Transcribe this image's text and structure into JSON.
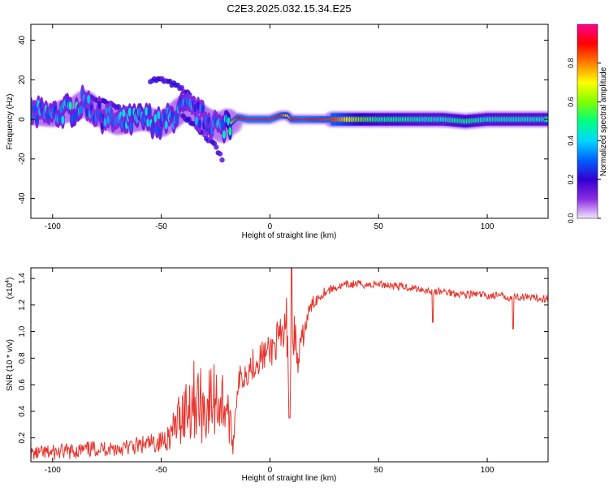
{
  "figure_title": "C2E3.2025.032.15.34.E25",
  "chart_data": [
    {
      "type": "heatmap",
      "xlabel": "Height of straight line (km)",
      "ylabel": "Frequency (Hz)",
      "xlim": [
        -110,
        128
      ],
      "ylim": [
        -50,
        48
      ],
      "xticks": [
        -100,
        -50,
        0,
        50,
        100
      ],
      "yticks": [
        -40,
        -20,
        0,
        20,
        40
      ],
      "colorbar": {
        "label": "Normalized spectral amplitude",
        "range": [
          0,
          1
        ],
        "ticks": [
          0.0,
          0.2,
          0.4,
          0.6,
          0.8
        ],
        "tick_labels": [
          "0.0",
          "0.2",
          "0.4",
          "0.6",
          "0.8"
        ],
        "colors": [
          "#f4e6ff",
          "#8a2be2",
          "#3200d0",
          "#0060ff",
          "#00d8ff",
          "#00ff80",
          "#80ff00",
          "#ffff00",
          "#ff8000",
          "#ff0000",
          "#ff0090"
        ]
      },
      "ridge": {
        "x": [
          -108,
          -100,
          -95,
          -90,
          -85,
          -80,
          -75,
          -70,
          -65,
          -60,
          -55,
          -50,
          -45,
          -40,
          -35,
          -30,
          -25,
          -22,
          -20,
          -18,
          -15,
          -10,
          -5,
          0,
          5,
          8,
          10,
          15,
          20,
          30,
          40,
          50,
          60,
          70,
          80,
          90,
          100,
          110,
          120,
          128
        ],
        "y": [
          3,
          2,
          4,
          5,
          9,
          3,
          1,
          -2,
          -1,
          0,
          0,
          -3,
          1,
          6,
          4,
          0,
          -2,
          -6,
          0,
          -2,
          1,
          0,
          0,
          0,
          2,
          2,
          0,
          0,
          0,
          0,
          0,
          0,
          0,
          0,
          0,
          -1,
          0,
          0,
          0,
          0
        ],
        "amplitude": [
          0.3,
          0.35,
          0.35,
          0.4,
          0.3,
          0.3,
          0.3,
          0.3,
          0.35,
          0.4,
          0.35,
          0.35,
          0.35,
          0.35,
          0.3,
          0.3,
          0.3,
          0.35,
          0.45,
          0.7,
          0.9,
          0.95,
          0.95,
          0.95,
          0.9,
          0.7,
          0.9,
          0.95,
          0.9,
          0.85,
          0.6,
          0.5,
          0.5,
          0.45,
          0.45,
          0.5,
          0.45,
          0.45,
          0.45,
          0.45
        ]
      },
      "side_bands": [
        {
          "x": [
            -55,
            -50,
            -45,
            -40,
            -35
          ],
          "y": [
            20,
            20,
            18,
            15,
            10
          ],
          "amplitude": 0.2
        },
        {
          "x": [
            -85,
            -80,
            -75,
            -70,
            -65,
            -60,
            -55
          ],
          "y": [
            12,
            10,
            8,
            6,
            4,
            2,
            0
          ],
          "amplitude": 0.2
        },
        {
          "x": [
            -40,
            -35,
            -30,
            -25,
            -22
          ],
          "y": [
            2,
            -2,
            -8,
            -14,
            -20
          ],
          "amplitude": 0.18
        }
      ]
    },
    {
      "type": "line",
      "xlabel": "Height of straight line (km)",
      "ylabel": "SNR (10 * v/v)",
      "scale_note": "(x10",
      "scale_exponent": "4",
      "scale_close": ")",
      "xlim": [
        -110,
        128
      ],
      "ylim": [
        0.02,
        1.48
      ],
      "xticks": [
        -100,
        -50,
        0,
        50,
        100
      ],
      "yticks": [
        0.2,
        0.4,
        0.6,
        0.8,
        1.0,
        1.2,
        1.4
      ],
      "ytick_labels": [
        "0.2",
        "0.4",
        "0.6",
        "0.8",
        "1.0",
        "1.2",
        "1.4"
      ],
      "series": [
        {
          "color": "#e8332b",
          "x": [
            -110,
            -100,
            -90,
            -80,
            -70,
            -60,
            -50,
            -45,
            -40,
            -35,
            -30,
            -25,
            -20,
            -17,
            -15,
            -10,
            -5,
            0,
            3,
            5,
            8,
            9,
            10,
            11,
            13,
            15,
            18,
            20,
            25,
            30,
            35,
            40,
            45,
            50,
            55,
            60,
            65,
            70,
            75,
            80,
            85,
            90,
            95,
            100,
            105,
            110,
            115,
            120,
            125,
            128
          ],
          "y": [
            0.08,
            0.09,
            0.1,
            0.12,
            0.12,
            0.14,
            0.17,
            0.24,
            0.4,
            0.5,
            0.42,
            0.5,
            0.45,
            0.15,
            0.6,
            0.72,
            0.8,
            0.85,
            0.92,
            0.9,
            1.05,
            0.4,
            1.2,
            1.0,
            0.75,
            0.95,
            1.15,
            1.22,
            1.3,
            1.33,
            1.35,
            1.36,
            1.35,
            1.36,
            1.35,
            1.34,
            1.33,
            1.32,
            1.3,
            1.3,
            1.29,
            1.28,
            1.28,
            1.27,
            1.27,
            1.26,
            1.26,
            1.25,
            1.25,
            1.25
          ],
          "noise": [
            0.05,
            0.06,
            0.06,
            0.06,
            0.06,
            0.07,
            0.08,
            0.12,
            0.25,
            0.3,
            0.28,
            0.3,
            0.25,
            0.08,
            0.12,
            0.12,
            0.12,
            0.12,
            0.15,
            0.2,
            0.25,
            0.0,
            0.25,
            0.2,
            0.15,
            0.1,
            0.06,
            0.05,
            0.04,
            0.03,
            0.03,
            0.03,
            0.03,
            0.03,
            0.03,
            0.03,
            0.03,
            0.03,
            0.03,
            0.03,
            0.03,
            0.03,
            0.03,
            0.03,
            0.03,
            0.03,
            0.03,
            0.03,
            0.03,
            0.03
          ]
        }
      ]
    }
  ]
}
